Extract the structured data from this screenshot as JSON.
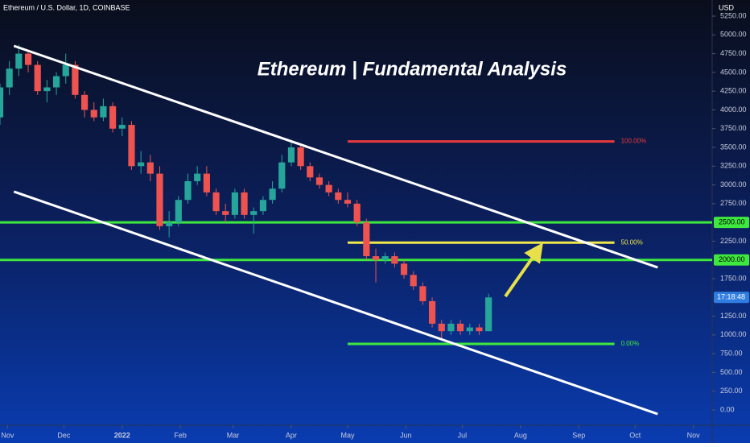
{
  "chart_data": {
    "type": "candlestick",
    "header": "Ethereum / U.S. Dollar, 1D, COINBASE",
    "currency": "USD",
    "title": "Ethereum | Fundamental Analysis",
    "up_color": "#26a69a",
    "down_color": "#ef5350",
    "x": [
      -4,
      1,
      6,
      11,
      16,
      21,
      26,
      31,
      36,
      41,
      46,
      51,
      56,
      61,
      66,
      71,
      76,
      81,
      86,
      91,
      96,
      101,
      106,
      111,
      116,
      121,
      126,
      131,
      136,
      141,
      146,
      151,
      156,
      161,
      166,
      171,
      176,
      181,
      186,
      191,
      196,
      201,
      206,
      211,
      216,
      221,
      226,
      231,
      236,
      241,
      246,
      251,
      256
    ],
    "open": [
      3900,
      4300,
      4550,
      4750,
      4600,
      4250,
      4300,
      4450,
      4600,
      4200,
      4000,
      3900,
      4050,
      3750,
      3800,
      3250,
      3300,
      3150,
      2450,
      2500,
      2800,
      3050,
      3150,
      2900,
      2650,
      2600,
      2900,
      2600,
      2650,
      2800,
      2950,
      3300,
      3500,
      3250,
      3100,
      3000,
      2900,
      2800,
      2750,
      2500,
      2050,
      2000,
      2050,
      1950,
      1800,
      1650,
      1450,
      1150,
      1050,
      1150,
      1050,
      1100,
      1050
    ],
    "high": [
      4350,
      4650,
      4870,
      4800,
      4650,
      4400,
      4500,
      4750,
      4650,
      4250,
      4100,
      4150,
      4100,
      3900,
      3850,
      3450,
      3400,
      3250,
      2650,
      2850,
      3150,
      3250,
      3250,
      2950,
      2750,
      2950,
      2950,
      2700,
      2850,
      3050,
      3400,
      3580,
      3520,
      3300,
      3150,
      3050,
      2950,
      2900,
      2800,
      2550,
      2150,
      2100,
      2100,
      2000,
      1850,
      1700,
      1500,
      1200,
      1200,
      1200,
      1150,
      1150,
      1550
    ],
    "low": [
      3800,
      4200,
      4450,
      4500,
      4200,
      4100,
      4200,
      4350,
      4150,
      3900,
      3850,
      3850,
      3700,
      3650,
      3200,
      3150,
      3050,
      2400,
      2300,
      2450,
      2750,
      3000,
      2850,
      2600,
      2500,
      2550,
      2550,
      2350,
      2600,
      2750,
      2900,
      3250,
      3200,
      3050,
      2950,
      2850,
      2750,
      2700,
      2450,
      2000,
      1700,
      1950,
      1900,
      1750,
      1600,
      1400,
      1100,
      950,
      1000,
      1000,
      1000,
      1000,
      1050
    ],
    "close": [
      4300,
      4550,
      4750,
      4600,
      4250,
      4300,
      4450,
      4600,
      4200,
      4000,
      3900,
      4050,
      3750,
      3800,
      3250,
      3300,
      3150,
      2450,
      2500,
      2800,
      3050,
      3150,
      2900,
      2650,
      2600,
      2900,
      2600,
      2650,
      2800,
      2950,
      3300,
      3500,
      3250,
      3100,
      3000,
      2900,
      2800,
      2750,
      2500,
      2050,
      2000,
      2050,
      1950,
      1800,
      1650,
      1450,
      1150,
      1050,
      1150,
      1050,
      1100,
      1050,
      1500
    ],
    "last_marker": "17:18:48",
    "xlim": [
      -4,
      375
    ],
    "ylim": [
      -204,
      5465
    ],
    "xticks": [
      {
        "value": 0,
        "label": "Nov"
      },
      {
        "value": 30,
        "label": "Dec"
      },
      {
        "value": 61,
        "label": "2022"
      },
      {
        "value": 92,
        "label": "Feb"
      },
      {
        "value": 120,
        "label": "Mar"
      },
      {
        "value": 151,
        "label": "Apr"
      },
      {
        "value": 181,
        "label": "May"
      },
      {
        "value": 212,
        "label": "Jun"
      },
      {
        "value": 242,
        "label": "Jul"
      },
      {
        "value": 273,
        "label": "Aug"
      },
      {
        "value": 304,
        "label": "Sep"
      },
      {
        "value": 334,
        "label": "Oct"
      },
      {
        "value": 365,
        "label": "Nov"
      }
    ],
    "yticks": [
      {
        "value": 5250,
        "label": "5250.00"
      },
      {
        "value": 5000,
        "label": "5000.00"
      },
      {
        "value": 4750,
        "label": "4750.00"
      },
      {
        "value": 4500,
        "label": "4500.00"
      },
      {
        "value": 4250,
        "label": "4250.00"
      },
      {
        "value": 4000,
        "label": "4000.00"
      },
      {
        "value": 3750,
        "label": "3750.00"
      },
      {
        "value": 3500,
        "label": "3500.00"
      },
      {
        "value": 3250,
        "label": "3250.00"
      },
      {
        "value": 3000,
        "label": "3000.00"
      },
      {
        "value": 2750,
        "label": "2750.00"
      },
      {
        "value": 2250,
        "label": "2250.00"
      },
      {
        "value": 1750,
        "label": "1750.00"
      },
      {
        "value": 1250,
        "label": "1250.00"
      },
      {
        "value": 1000,
        "label": "1000.00"
      },
      {
        "value": 750,
        "label": "750.00"
      },
      {
        "value": 500,
        "label": "500.00"
      },
      {
        "value": 250,
        "label": "250.00"
      },
      {
        "value": 0,
        "label": "0.00"
      }
    ],
    "levels": [
      {
        "value": 2500,
        "label": "2500.00",
        "color": "#3ee83e"
      },
      {
        "value": 2000,
        "label": "2000.00",
        "color": "#3ee83e"
      }
    ],
    "fib_x": [
      181,
      323
    ],
    "fib_levels": [
      {
        "value": 3580,
        "ratio_label": "100.00%",
        "color": "#e83b3b"
      },
      {
        "value": 2230,
        "ratio_label": "50.00%",
        "color": "#f0e74a"
      },
      {
        "value": 880,
        "ratio_label": "0.00%",
        "color": "#3ee83e"
      }
    ],
    "trendlines": [
      {
        "x": [
          3.4,
          346
        ],
        "y": [
          4853,
          1900
        ],
        "color": "#ffffff"
      },
      {
        "x": [
          3.4,
          346
        ],
        "y": [
          2910,
          -54
        ],
        "color": "#ffffff"
      }
    ]
  }
}
